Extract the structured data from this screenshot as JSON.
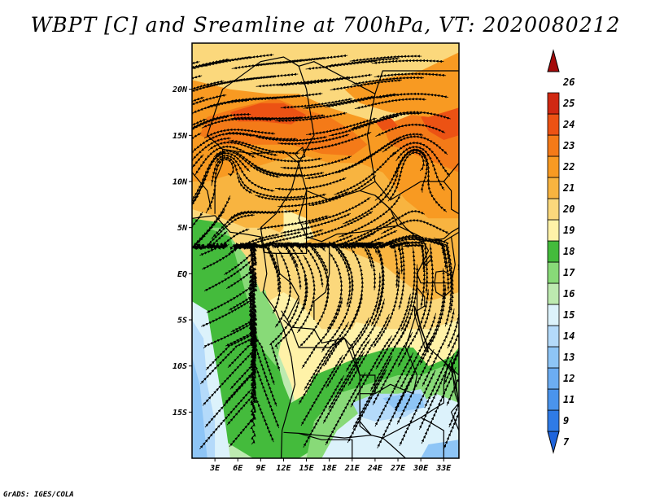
{
  "title": "WBPT [C] and Sreamline at 700hPa, VT: 2020080212",
  "credit": "GrADS: IGES/COLA",
  "lat_ticks": [
    {
      "value": 20,
      "label": "20N"
    },
    {
      "value": 15,
      "label": "15N"
    },
    {
      "value": 10,
      "label": "10N"
    },
    {
      "value": 5,
      "label": "5N"
    },
    {
      "value": 0,
      "label": "EQ"
    },
    {
      "value": -5,
      "label": "5S"
    },
    {
      "value": -10,
      "label": "10S"
    },
    {
      "value": -15,
      "label": "15S"
    }
  ],
  "lon_ticks": [
    {
      "value": 3,
      "label": "3E"
    },
    {
      "value": 6,
      "label": "6E"
    },
    {
      "value": 9,
      "label": "9E"
    },
    {
      "value": 12,
      "label": "12E"
    },
    {
      "value": 15,
      "label": "15E"
    },
    {
      "value": 18,
      "label": "18E"
    },
    {
      "value": 21,
      "label": "21E"
    },
    {
      "value": 24,
      "label": "24E"
    },
    {
      "value": 27,
      "label": "27E"
    },
    {
      "value": 30,
      "label": "30E"
    },
    {
      "value": 33,
      "label": "33E"
    }
  ],
  "extent": {
    "lon_min": 0,
    "lon_max": 35,
    "lat_min": -20,
    "lat_max": 25
  },
  "colorbar": [
    {
      "label": "7",
      "color": "#1e64dc"
    },
    {
      "label": "9",
      "color": "#2f7be6"
    },
    {
      "label": "11",
      "color": "#4a94ec"
    },
    {
      "label": "12",
      "color": "#6cadf2"
    },
    {
      "label": "13",
      "color": "#8ec5f6"
    },
    {
      "label": "14",
      "color": "#b4dafa"
    },
    {
      "label": "15",
      "color": "#dcf2fb"
    },
    {
      "label": "16",
      "color": "#bdeab0"
    },
    {
      "label": "17",
      "color": "#88da78"
    },
    {
      "label": "18",
      "color": "#44bb3c"
    },
    {
      "label": "19",
      "color": "#fff2a8"
    },
    {
      "label": "20",
      "color": "#fbd87c"
    },
    {
      "label": "21",
      "color": "#f8b440"
    },
    {
      "label": "22",
      "color": "#f89a22"
    },
    {
      "label": "23",
      "color": "#f47a18"
    },
    {
      "label": "24",
      "color": "#ec5214"
    },
    {
      "label": "25",
      "color": "#d02812"
    },
    {
      "label": "26",
      "color": "#a40a0a"
    }
  ]
}
